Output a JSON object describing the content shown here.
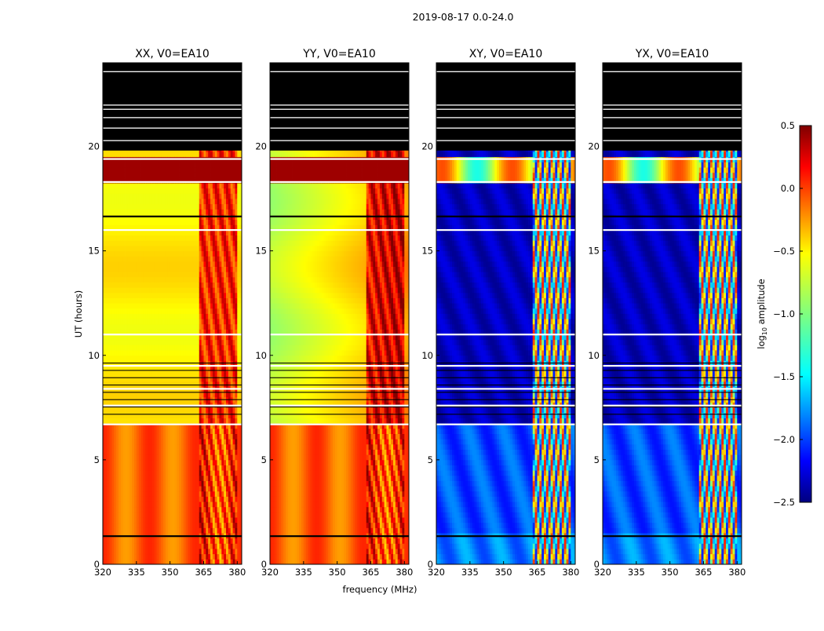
{
  "chart_data": {
    "type": "heatmap",
    "title": "2019-08-17 0.0-24.0",
    "xlabel": "frequency (MHz)",
    "ylabel": "UT (hours)",
    "xlim": [
      320,
      382
    ],
    "ylim": [
      0,
      24
    ],
    "xticks": [
      320,
      335,
      350,
      365,
      380
    ],
    "yticks": [
      0,
      5,
      10,
      15,
      20
    ],
    "panels": [
      {
        "name": "XX, V0=EA10",
        "kind": "parallel"
      },
      {
        "name": "YY, V0=EA10",
        "kind": "parallel"
      },
      {
        "name": "XY, V0=EA10",
        "kind": "cross"
      },
      {
        "name": "YX, V0=EA10",
        "kind": "cross"
      }
    ],
    "colorbar": {
      "label": "log10 amplitude",
      "label_main": "log",
      "label_sub": "10",
      "label_tail": " amplitude",
      "range": [
        -2.5,
        0.5
      ],
      "ticks": [
        "0.5",
        "0.0",
        "−0.5",
        "−1.0",
        "−1.5",
        "−2.0",
        "−2.5"
      ],
      "colormap": "jet"
    },
    "no_data_above_ut": 19.8,
    "flagged_ut_hours": [
      19.4,
      18.3,
      16.65,
      16.0,
      11.0,
      6.7,
      1.35,
      9.5,
      8.4,
      7.6
    ]
  }
}
